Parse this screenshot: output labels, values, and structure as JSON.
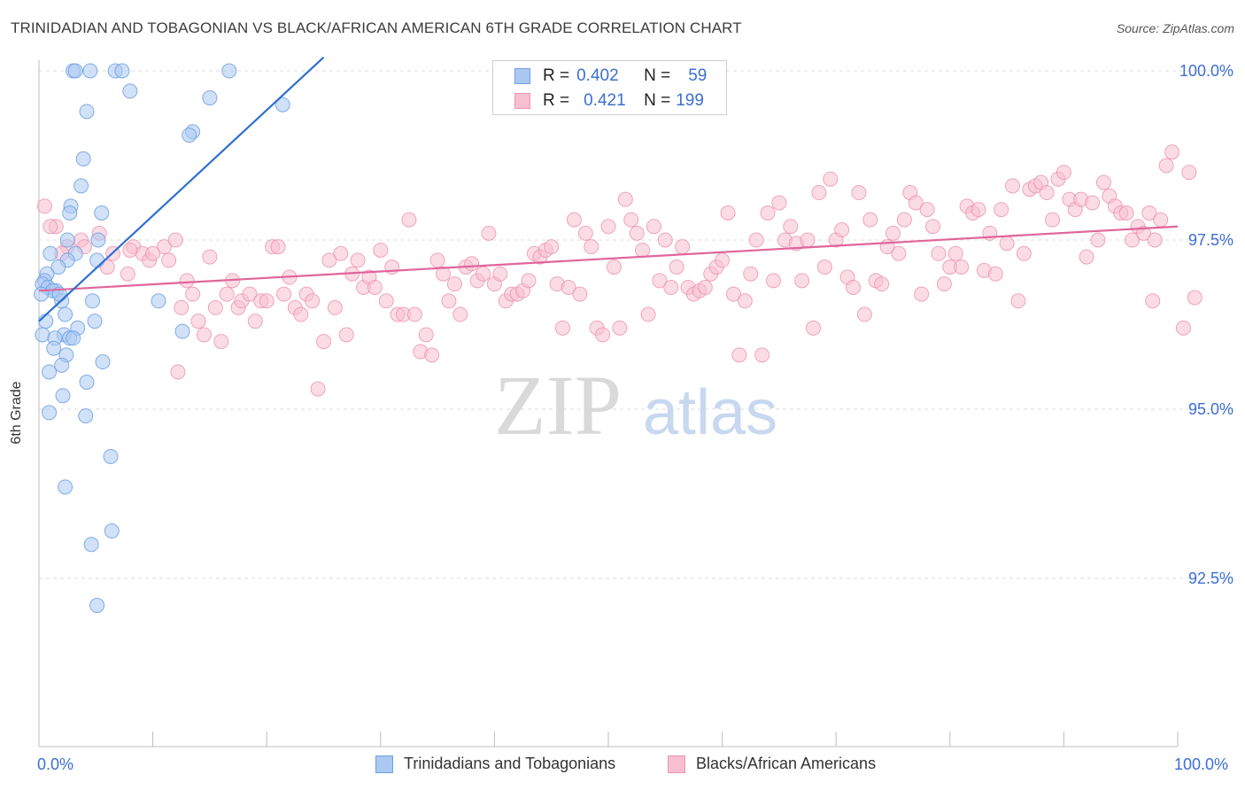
{
  "title": "TRINIDADIAN AND TOBAGONIAN VS BLACK/AFRICAN AMERICAN 6TH GRADE CORRELATION CHART",
  "source": "Source: ZipAtlas.com",
  "watermark": {
    "zip": "ZIP",
    "atlas": "atlas"
  },
  "legend": {
    "rows": [
      {
        "r_label": "R =",
        "r_value": "0.402",
        "n_label": "N =",
        "n_value": "59"
      },
      {
        "r_label": "R =",
        "r_value": "0.421",
        "n_label": "N =",
        "n_value": "199"
      }
    ]
  },
  "colors": {
    "blue_fill": "#a9c8f2",
    "blue_stroke": "#6fa0e0",
    "blue_line": "#2f6fd0",
    "pink_fill": "#f7bfd0",
    "pink_stroke": "#ec96b1",
    "pink_line": "#e0659a",
    "tick_label": "#3b6fd1",
    "grid": "#dedede"
  },
  "chart_data": {
    "type": "scatter",
    "title": "TRINIDADIAN AND TOBAGONIAN VS BLACK/AFRICAN AMERICAN 6TH GRADE CORRELATION CHART",
    "xlabel": "",
    "ylabel": "6th Grade",
    "xlim": [
      0,
      100
    ],
    "ylim": [
      90.3,
      100.2
    ],
    "x_tick_labels": [
      "0.0%",
      "100.0%"
    ],
    "y_ticks": [
      {
        "value": 100.0,
        "label": "100.0%"
      },
      {
        "value": 97.5,
        "label": "97.5%"
      },
      {
        "value": 95.0,
        "label": "95.0%"
      },
      {
        "value": 92.5,
        "label": "92.5%"
      }
    ],
    "grid": "horizontal dashed",
    "legend_position": "bottom",
    "series": [
      {
        "name": "Trinidadians and Tobagonians",
        "R": 0.402,
        "N": 59,
        "trend": [
          [
            0,
            96.3
          ],
          [
            25,
            100.2
          ]
        ],
        "points": [
          [
            3,
            100
          ],
          [
            3.2,
            100
          ],
          [
            4.5,
            100
          ],
          [
            6.7,
            100
          ],
          [
            7.3,
            100
          ],
          [
            16.7,
            100
          ],
          [
            8,
            99.7
          ],
          [
            21.4,
            99.5
          ],
          [
            4.2,
            99.4
          ],
          [
            13.5,
            99.1
          ],
          [
            13.2,
            99.05
          ],
          [
            3.9,
            98.7
          ],
          [
            3.7,
            98.3
          ],
          [
            2.8,
            98.0
          ],
          [
            5.5,
            97.9
          ],
          [
            2.7,
            97.9
          ],
          [
            2.5,
            97.5
          ],
          [
            5.2,
            97.5
          ],
          [
            3.2,
            97.3
          ],
          [
            1.0,
            97.3
          ],
          [
            2.5,
            97.2
          ],
          [
            5.1,
            97.2
          ],
          [
            1.7,
            97.1
          ],
          [
            0.7,
            97.0
          ],
          [
            0.5,
            96.9
          ],
          [
            0.3,
            96.85
          ],
          [
            0.8,
            96.8
          ],
          [
            1.5,
            96.75
          ],
          [
            1.2,
            96.75
          ],
          [
            0.2,
            96.7
          ],
          [
            2.0,
            96.6
          ],
          [
            1.8,
            96.7
          ],
          [
            4.7,
            96.6
          ],
          [
            2.3,
            96.4
          ],
          [
            0.6,
            96.3
          ],
          [
            3.4,
            96.2
          ],
          [
            4.9,
            96.3
          ],
          [
            12.6,
            96.15
          ],
          [
            0.3,
            96.1
          ],
          [
            2.2,
            96.1
          ],
          [
            1.4,
            96.05
          ],
          [
            2.7,
            96.05
          ],
          [
            3.0,
            96.05
          ],
          [
            1.3,
            95.9
          ],
          [
            2.4,
            95.8
          ],
          [
            5.6,
            95.7
          ],
          [
            2.0,
            95.65
          ],
          [
            0.9,
            95.55
          ],
          [
            4.2,
            95.4
          ],
          [
            2.1,
            95.2
          ],
          [
            0.9,
            94.95
          ],
          [
            4.1,
            94.9
          ],
          [
            6.3,
            94.3
          ],
          [
            2.3,
            93.85
          ],
          [
            6.4,
            93.2
          ],
          [
            4.6,
            93.0
          ],
          [
            5.1,
            92.1
          ],
          [
            15.0,
            99.6
          ],
          [
            10.5,
            96.6
          ]
        ]
      },
      {
        "name": "Blacks/African Americans",
        "R": 0.421,
        "N": 199,
        "trend": [
          [
            0,
            96.75
          ],
          [
            100,
            97.7
          ]
        ],
        "points": [
          [
            0.5,
            98.0
          ],
          [
            1.5,
            97.7
          ],
          [
            3.7,
            97.5
          ],
          [
            2.5,
            97.4
          ],
          [
            5.3,
            97.6
          ],
          [
            6.5,
            97.3
          ],
          [
            7.8,
            97.0
          ],
          [
            8.3,
            97.4
          ],
          [
            9.1,
            97.3
          ],
          [
            9.7,
            97.2
          ],
          [
            11.0,
            97.4
          ],
          [
            11.4,
            97.2
          ],
          [
            12.0,
            97.5
          ],
          [
            12.5,
            96.5
          ],
          [
            13.0,
            96.9
          ],
          [
            13.5,
            96.7
          ],
          [
            14.0,
            96.3
          ],
          [
            14.5,
            96.1
          ],
          [
            15.0,
            97.25
          ],
          [
            15.5,
            96.5
          ],
          [
            16.0,
            96.0
          ],
          [
            16.5,
            96.7
          ],
          [
            17.0,
            96.9
          ],
          [
            17.5,
            96.5
          ],
          [
            17.8,
            96.6
          ],
          [
            18.5,
            96.7
          ],
          [
            19.0,
            96.3
          ],
          [
            19.5,
            96.6
          ],
          [
            20.0,
            96.6
          ],
          [
            20.5,
            97.4
          ],
          [
            21.0,
            97.4
          ],
          [
            21.5,
            96.7
          ],
          [
            22.0,
            96.95
          ],
          [
            22.5,
            96.5
          ],
          [
            23.0,
            96.4
          ],
          [
            23.5,
            96.7
          ],
          [
            24.0,
            96.6
          ],
          [
            24.5,
            95.3
          ],
          [
            25.0,
            96.0
          ],
          [
            25.5,
            97.2
          ],
          [
            26.0,
            96.5
          ],
          [
            26.5,
            97.3
          ],
          [
            27.0,
            96.1
          ],
          [
            27.5,
            97.0
          ],
          [
            28.0,
            97.2
          ],
          [
            28.5,
            96.8
          ],
          [
            29.0,
            96.95
          ],
          [
            29.5,
            96.8
          ],
          [
            30.0,
            97.35
          ],
          [
            30.5,
            96.6
          ],
          [
            31.0,
            97.1
          ],
          [
            31.5,
            96.4
          ],
          [
            32.0,
            96.4
          ],
          [
            32.5,
            97.8
          ],
          [
            33.0,
            96.4
          ],
          [
            33.5,
            95.85
          ],
          [
            34.0,
            96.1
          ],
          [
            34.5,
            95.8
          ],
          [
            35.0,
            97.2
          ],
          [
            35.5,
            97.0
          ],
          [
            36.0,
            96.6
          ],
          [
            36.5,
            96.85
          ],
          [
            37.0,
            96.4
          ],
          [
            37.5,
            97.1
          ],
          [
            38.0,
            97.15
          ],
          [
            38.5,
            96.9
          ],
          [
            39.0,
            97.0
          ],
          [
            39.5,
            97.6
          ],
          [
            40.0,
            96.85
          ],
          [
            40.5,
            97.0
          ],
          [
            41.0,
            96.6
          ],
          [
            41.5,
            96.7
          ],
          [
            42.0,
            96.7
          ],
          [
            42.5,
            96.75
          ],
          [
            43.0,
            96.9
          ],
          [
            43.5,
            97.3
          ],
          [
            44.0,
            97.25
          ],
          [
            44.5,
            97.35
          ],
          [
            45.0,
            97.4
          ],
          [
            45.5,
            96.85
          ],
          [
            46.0,
            96.2
          ],
          [
            46.5,
            96.8
          ],
          [
            47.0,
            97.8
          ],
          [
            47.5,
            96.7
          ],
          [
            48.0,
            97.6
          ],
          [
            48.5,
            97.4
          ],
          [
            49.0,
            96.2
          ],
          [
            49.5,
            96.1
          ],
          [
            50.0,
            97.7
          ],
          [
            50.5,
            97.1
          ],
          [
            51.0,
            96.2
          ],
          [
            51.5,
            98.1
          ],
          [
            52.0,
            97.8
          ],
          [
            52.5,
            97.6
          ],
          [
            53.0,
            97.35
          ],
          [
            53.5,
            96.4
          ],
          [
            54.0,
            97.7
          ],
          [
            54.5,
            96.9
          ],
          [
            55.0,
            97.5
          ],
          [
            55.5,
            96.8
          ],
          [
            56.0,
            97.1
          ],
          [
            56.5,
            97.4
          ],
          [
            57.0,
            96.8
          ],
          [
            57.5,
            96.7
          ],
          [
            58.0,
            96.75
          ],
          [
            58.5,
            96.8
          ],
          [
            59.0,
            97.0
          ],
          [
            59.5,
            97.1
          ],
          [
            60.0,
            97.2
          ],
          [
            60.5,
            97.9
          ],
          [
            61.0,
            96.7
          ],
          [
            61.5,
            95.8
          ],
          [
            62.0,
            96.6
          ],
          [
            62.5,
            97.0
          ],
          [
            63.0,
            97.5
          ],
          [
            63.5,
            95.8
          ],
          [
            64.0,
            97.9
          ],
          [
            64.5,
            96.9
          ],
          [
            65.0,
            98.05
          ],
          [
            65.5,
            97.5
          ],
          [
            66.0,
            97.7
          ],
          [
            66.5,
            97.45
          ],
          [
            67.0,
            96.9
          ],
          [
            67.5,
            97.5
          ],
          [
            68.0,
            96.2
          ],
          [
            68.5,
            98.2
          ],
          [
            69.0,
            97.1
          ],
          [
            69.5,
            98.4
          ],
          [
            70.0,
            97.5
          ],
          [
            70.5,
            97.65
          ],
          [
            71.0,
            96.95
          ],
          [
            71.5,
            96.8
          ],
          [
            72.0,
            98.2
          ],
          [
            72.5,
            96.4
          ],
          [
            73.0,
            97.8
          ],
          [
            73.5,
            96.9
          ],
          [
            74.0,
            96.85
          ],
          [
            74.5,
            97.4
          ],
          [
            75.0,
            97.6
          ],
          [
            75.5,
            97.3
          ],
          [
            76.0,
            97.8
          ],
          [
            76.5,
            98.2
          ],
          [
            77.0,
            98.05
          ],
          [
            77.5,
            96.7
          ],
          [
            78.0,
            97.95
          ],
          [
            78.5,
            97.7
          ],
          [
            79.0,
            97.3
          ],
          [
            79.5,
            96.85
          ],
          [
            80.0,
            97.1
          ],
          [
            80.5,
            97.3
          ],
          [
            81.0,
            97.1
          ],
          [
            81.5,
            98.0
          ],
          [
            82.0,
            97.9
          ],
          [
            82.5,
            97.95
          ],
          [
            83.0,
            97.05
          ],
          [
            83.5,
            97.6
          ],
          [
            84.0,
            97.0
          ],
          [
            84.5,
            97.95
          ],
          [
            85.0,
            97.45
          ],
          [
            85.5,
            98.3
          ],
          [
            86.0,
            96.6
          ],
          [
            86.5,
            97.3
          ],
          [
            87.0,
            98.25
          ],
          [
            87.5,
            98.3
          ],
          [
            88.0,
            98.35
          ],
          [
            88.5,
            98.2
          ],
          [
            89.0,
            97.8
          ],
          [
            89.5,
            98.4
          ],
          [
            90.0,
            98.5
          ],
          [
            90.5,
            98.1
          ],
          [
            91.0,
            97.95
          ],
          [
            91.5,
            98.1
          ],
          [
            92.0,
            97.25
          ],
          [
            92.5,
            98.05
          ],
          [
            93.0,
            97.5
          ],
          [
            93.5,
            98.35
          ],
          [
            94.0,
            98.15
          ],
          [
            94.5,
            98.0
          ],
          [
            95.0,
            97.9
          ],
          [
            95.5,
            97.9
          ],
          [
            96.0,
            97.5
          ],
          [
            96.5,
            97.7
          ],
          [
            97.0,
            97.6
          ],
          [
            97.5,
            97.9
          ],
          [
            98.0,
            97.5
          ],
          [
            98.5,
            97.8
          ],
          [
            99.0,
            98.6
          ],
          [
            99.5,
            98.8
          ],
          [
            97.8,
            96.6
          ],
          [
            100.5,
            96.2
          ],
          [
            101.0,
            98.5
          ],
          [
            101.5,
            96.65
          ],
          [
            1.0,
            97.7
          ],
          [
            2.0,
            97.3
          ],
          [
            4.0,
            97.4
          ],
          [
            6.0,
            97.1
          ],
          [
            8.0,
            97.35
          ],
          [
            10.0,
            97.3
          ],
          [
            12.2,
            95.55
          ]
        ]
      }
    ]
  }
}
